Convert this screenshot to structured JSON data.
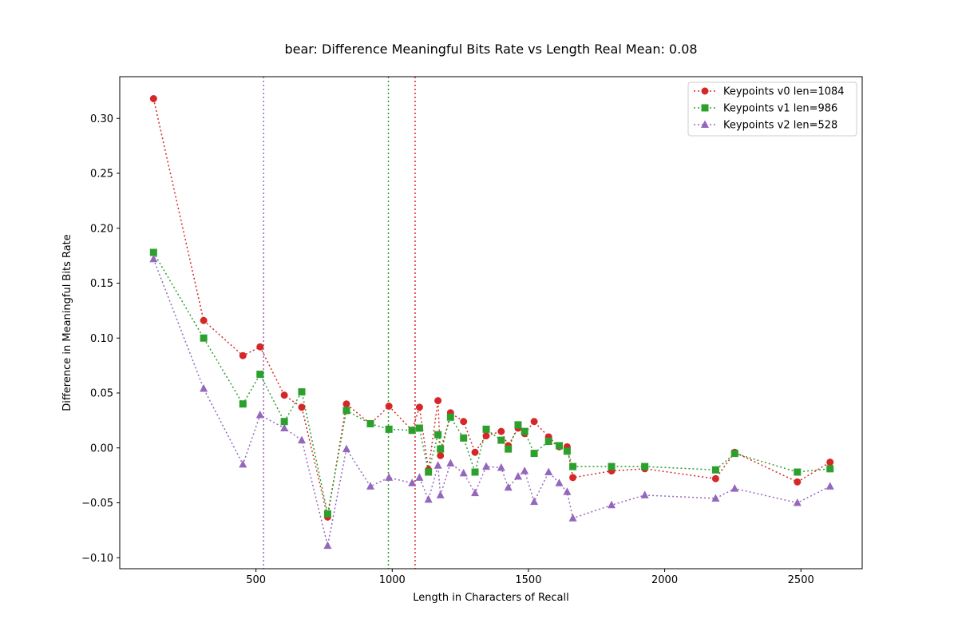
{
  "chart_data": {
    "type": "line",
    "title": "bear: Difference Meaningful Bits Rate vs Length Real Mean: 0.08",
    "xlabel": "Length in Characters of Recall",
    "ylabel": "Difference in Meaningful Bits Rate",
    "xlim": [
      0,
      2725
    ],
    "ylim": [
      -0.11,
      0.338
    ],
    "xticks": [
      500,
      1000,
      1500,
      2000,
      2500
    ],
    "xtick_labels": [
      "500",
      "1000",
      "1500",
      "2000",
      "2500"
    ],
    "yticks": [
      -0.1,
      -0.05,
      0.0,
      0.05,
      0.1,
      0.15,
      0.2,
      0.25,
      0.3
    ],
    "ytick_labels": [
      "−0.10",
      "−0.05",
      "0.00",
      "0.05",
      "0.10",
      "0.15",
      "0.20",
      "0.25",
      "0.30"
    ],
    "grid": false,
    "legend_position": "top-right",
    "x": [
      124,
      308,
      452,
      515,
      604,
      668,
      763,
      832,
      920,
      988,
      1073,
      1100,
      1133,
      1168,
      1177,
      1214,
      1262,
      1304,
      1345,
      1400,
      1426,
      1462,
      1486,
      1521,
      1574,
      1613,
      1642,
      1663,
      1805,
      1927,
      2187,
      2257,
      2487,
      2607
    ],
    "series": [
      {
        "name": "Keypoints v0 len=1084",
        "color": "#d62728",
        "marker": "circle",
        "vline": 1084,
        "values": [
          0.318,
          0.116,
          0.084,
          0.092,
          0.048,
          0.037,
          -0.063,
          0.04,
          0.022,
          0.038,
          0.016,
          0.037,
          -0.02,
          0.043,
          -0.007,
          0.032,
          0.024,
          -0.004,
          0.011,
          0.015,
          0.002,
          0.018,
          0.013,
          0.024,
          0.01,
          0.001,
          0.001,
          -0.027,
          -0.021,
          -0.019,
          -0.028,
          -0.004,
          -0.031,
          -0.013
        ]
      },
      {
        "name": "Keypoints v1 len=986",
        "color": "#2ca02c",
        "marker": "square",
        "vline": 986,
        "values": [
          0.178,
          0.1,
          0.04,
          0.067,
          0.024,
          0.051,
          -0.06,
          0.034,
          0.022,
          0.017,
          0.016,
          0.018,
          -0.022,
          0.012,
          -0.001,
          0.028,
          0.009,
          -0.022,
          0.017,
          0.007,
          -0.001,
          0.021,
          0.015,
          -0.005,
          0.006,
          0.002,
          -0.003,
          -0.017,
          -0.017,
          -0.017,
          -0.02,
          -0.005,
          -0.022,
          -0.019
        ]
      },
      {
        "name": "Keypoints v2 len=528",
        "color": "#9467bd",
        "marker": "triangle",
        "vline": 528,
        "values": [
          0.172,
          0.054,
          -0.015,
          0.03,
          0.018,
          0.007,
          -0.089,
          -0.001,
          -0.035,
          -0.027,
          -0.032,
          -0.027,
          -0.047,
          -0.016,
          -0.043,
          -0.014,
          -0.023,
          -0.041,
          -0.017,
          -0.018,
          -0.036,
          -0.026,
          -0.021,
          -0.049,
          -0.022,
          -0.032,
          -0.04,
          -0.064,
          -0.052,
          -0.043,
          -0.046,
          -0.037,
          -0.05,
          -0.035
        ]
      }
    ]
  }
}
